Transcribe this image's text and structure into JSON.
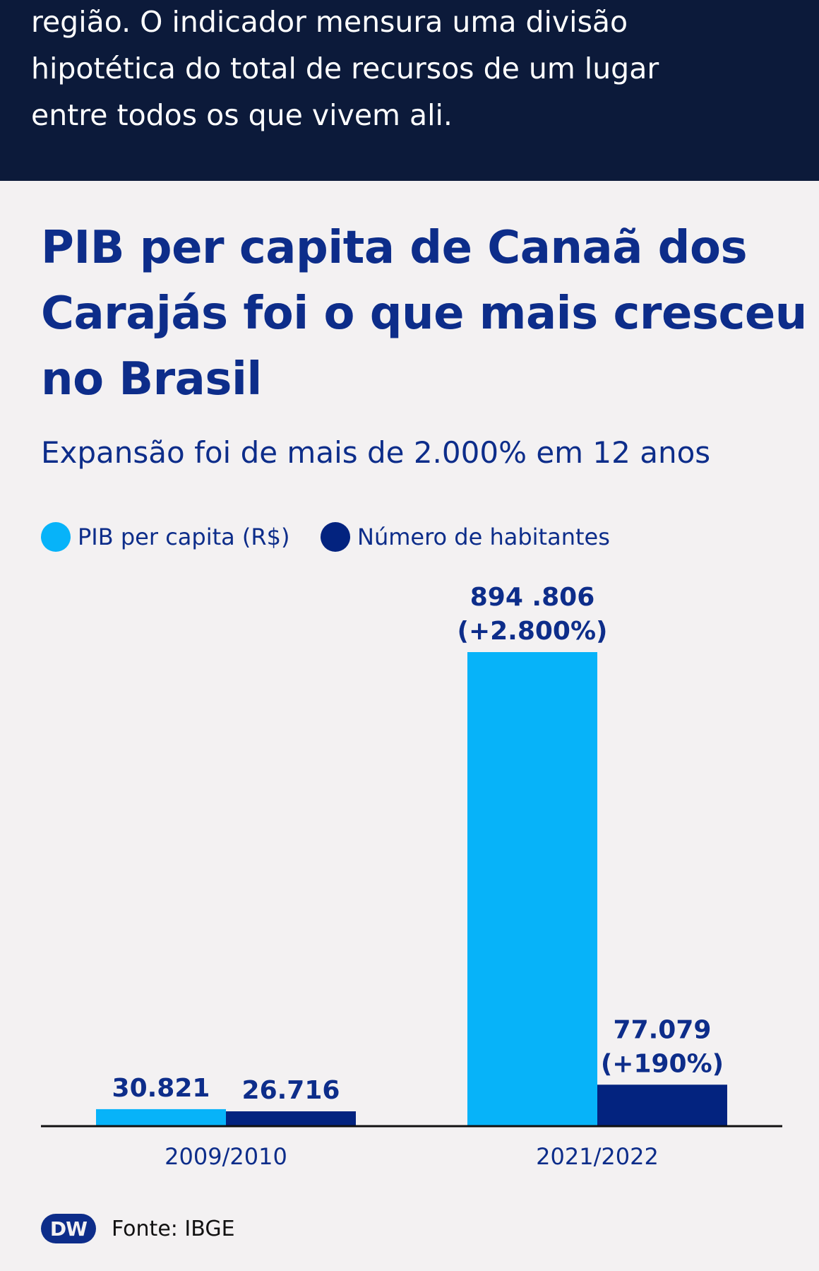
{
  "intro": {
    "lines": [
      "região. O indicador mensura uma divisão",
      "hipotética do total de recursos de um lugar",
      "entre todos os que vivem ali."
    ]
  },
  "colors": {
    "pib": "#07b3f9",
    "habitantes": "#03237f",
    "title": "#0d2d8a",
    "banner": "#0c1a3a"
  },
  "chart_data": {
    "type": "bar",
    "title": "PIB per capita de Canaã dos Carajás foi o que mais cresceu no Brasil",
    "title_lines": [
      "PIB per capita de Canaã dos",
      "Carajás foi o que mais cresceu",
      "no Brasil"
    ],
    "subtitle": "Expansão foi de mais de 2.000% em 12 anos",
    "categories": [
      "2009/2010",
      "2021/2022"
    ],
    "series": [
      {
        "name": "PIB per capita (R$)",
        "color": "#07b3f9",
        "values": [
          30821,
          894806
        ],
        "labels": [
          [
            "30.821"
          ],
          [
            "894 .806",
            "(+2.800%)"
          ]
        ]
      },
      {
        "name": "Número de habitantes",
        "color": "#03237f",
        "values": [
          26716,
          77079
        ],
        "labels": [
          [
            "26.716"
          ],
          [
            "77.079",
            "(+190%)"
          ]
        ]
      }
    ],
    "legend_position": "top-left",
    "grid": false
  },
  "footer": {
    "logo_text": "DW",
    "source": "Fonte: IBGE"
  }
}
